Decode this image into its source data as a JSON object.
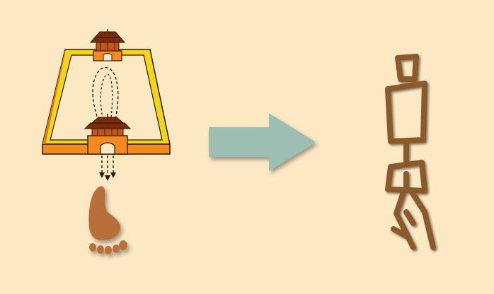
{
  "colors": {
    "background": "#fde8c4",
    "wall_top": "#f2d41a",
    "wall_side": "#f28a1e",
    "outline": "#2a1a0a",
    "gate_roof": "#7a2a10",
    "footprint": "#b86f3a",
    "arrow": "#9dbfb3",
    "glyph": "#8a5a2c",
    "glyph_dark": "#4a2c14"
  },
  "icons": {
    "city": "walled-city-icon",
    "foot": "footprint-icon",
    "arrow": "right-arrow-icon",
    "glyph": "ancient-character-icon"
  }
}
